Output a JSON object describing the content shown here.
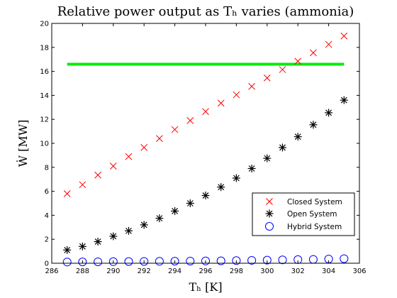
{
  "chart_data": {
    "type": "scatter",
    "title": "Relative power output as Tₕ varies (ammonia)",
    "xlabel": "Tₕ [K]",
    "ylabel": "Ẇ [MW]",
    "xlim": [
      286,
      306
    ],
    "ylim": [
      0,
      20
    ],
    "xticks": [
      286,
      288,
      290,
      292,
      294,
      296,
      298,
      300,
      302,
      304,
      306
    ],
    "yticks": [
      0,
      2,
      4,
      6,
      8,
      10,
      12,
      14,
      16,
      18,
      20
    ],
    "grid": false,
    "legend_position": "bottom-right",
    "x": [
      287,
      288,
      289,
      290,
      291,
      292,
      293,
      294,
      295,
      296,
      297,
      298,
      299,
      300,
      301,
      302,
      303,
      304,
      305
    ],
    "series": [
      {
        "name": "Closed System",
        "marker": "x",
        "color": "#ff0000",
        "values": [
          5.8,
          6.55,
          7.35,
          8.1,
          8.9,
          9.65,
          10.4,
          11.15,
          11.9,
          12.65,
          13.35,
          14.05,
          14.75,
          15.45,
          16.15,
          16.85,
          17.55,
          18.25,
          18.95
        ]
      },
      {
        "name": "Open System",
        "marker": "asterisk",
        "color": "#000000",
        "values": [
          1.1,
          1.4,
          1.8,
          2.25,
          2.7,
          3.2,
          3.75,
          4.35,
          5.0,
          5.65,
          6.35,
          7.1,
          7.9,
          8.75,
          9.65,
          10.55,
          11.55,
          12.55,
          13.6
        ]
      },
      {
        "name": "Hybrid System",
        "marker": "circle",
        "color": "#0000ff",
        "values": [
          0.1,
          0.11,
          0.12,
          0.13,
          0.14,
          0.15,
          0.16,
          0.17,
          0.18,
          0.19,
          0.2,
          0.22,
          0.24,
          0.26,
          0.28,
          0.3,
          0.32,
          0.35,
          0.38
        ]
      }
    ],
    "reference_line": {
      "y": 16.6,
      "x_range": [
        287,
        305
      ],
      "color": "#00ee00"
    }
  }
}
